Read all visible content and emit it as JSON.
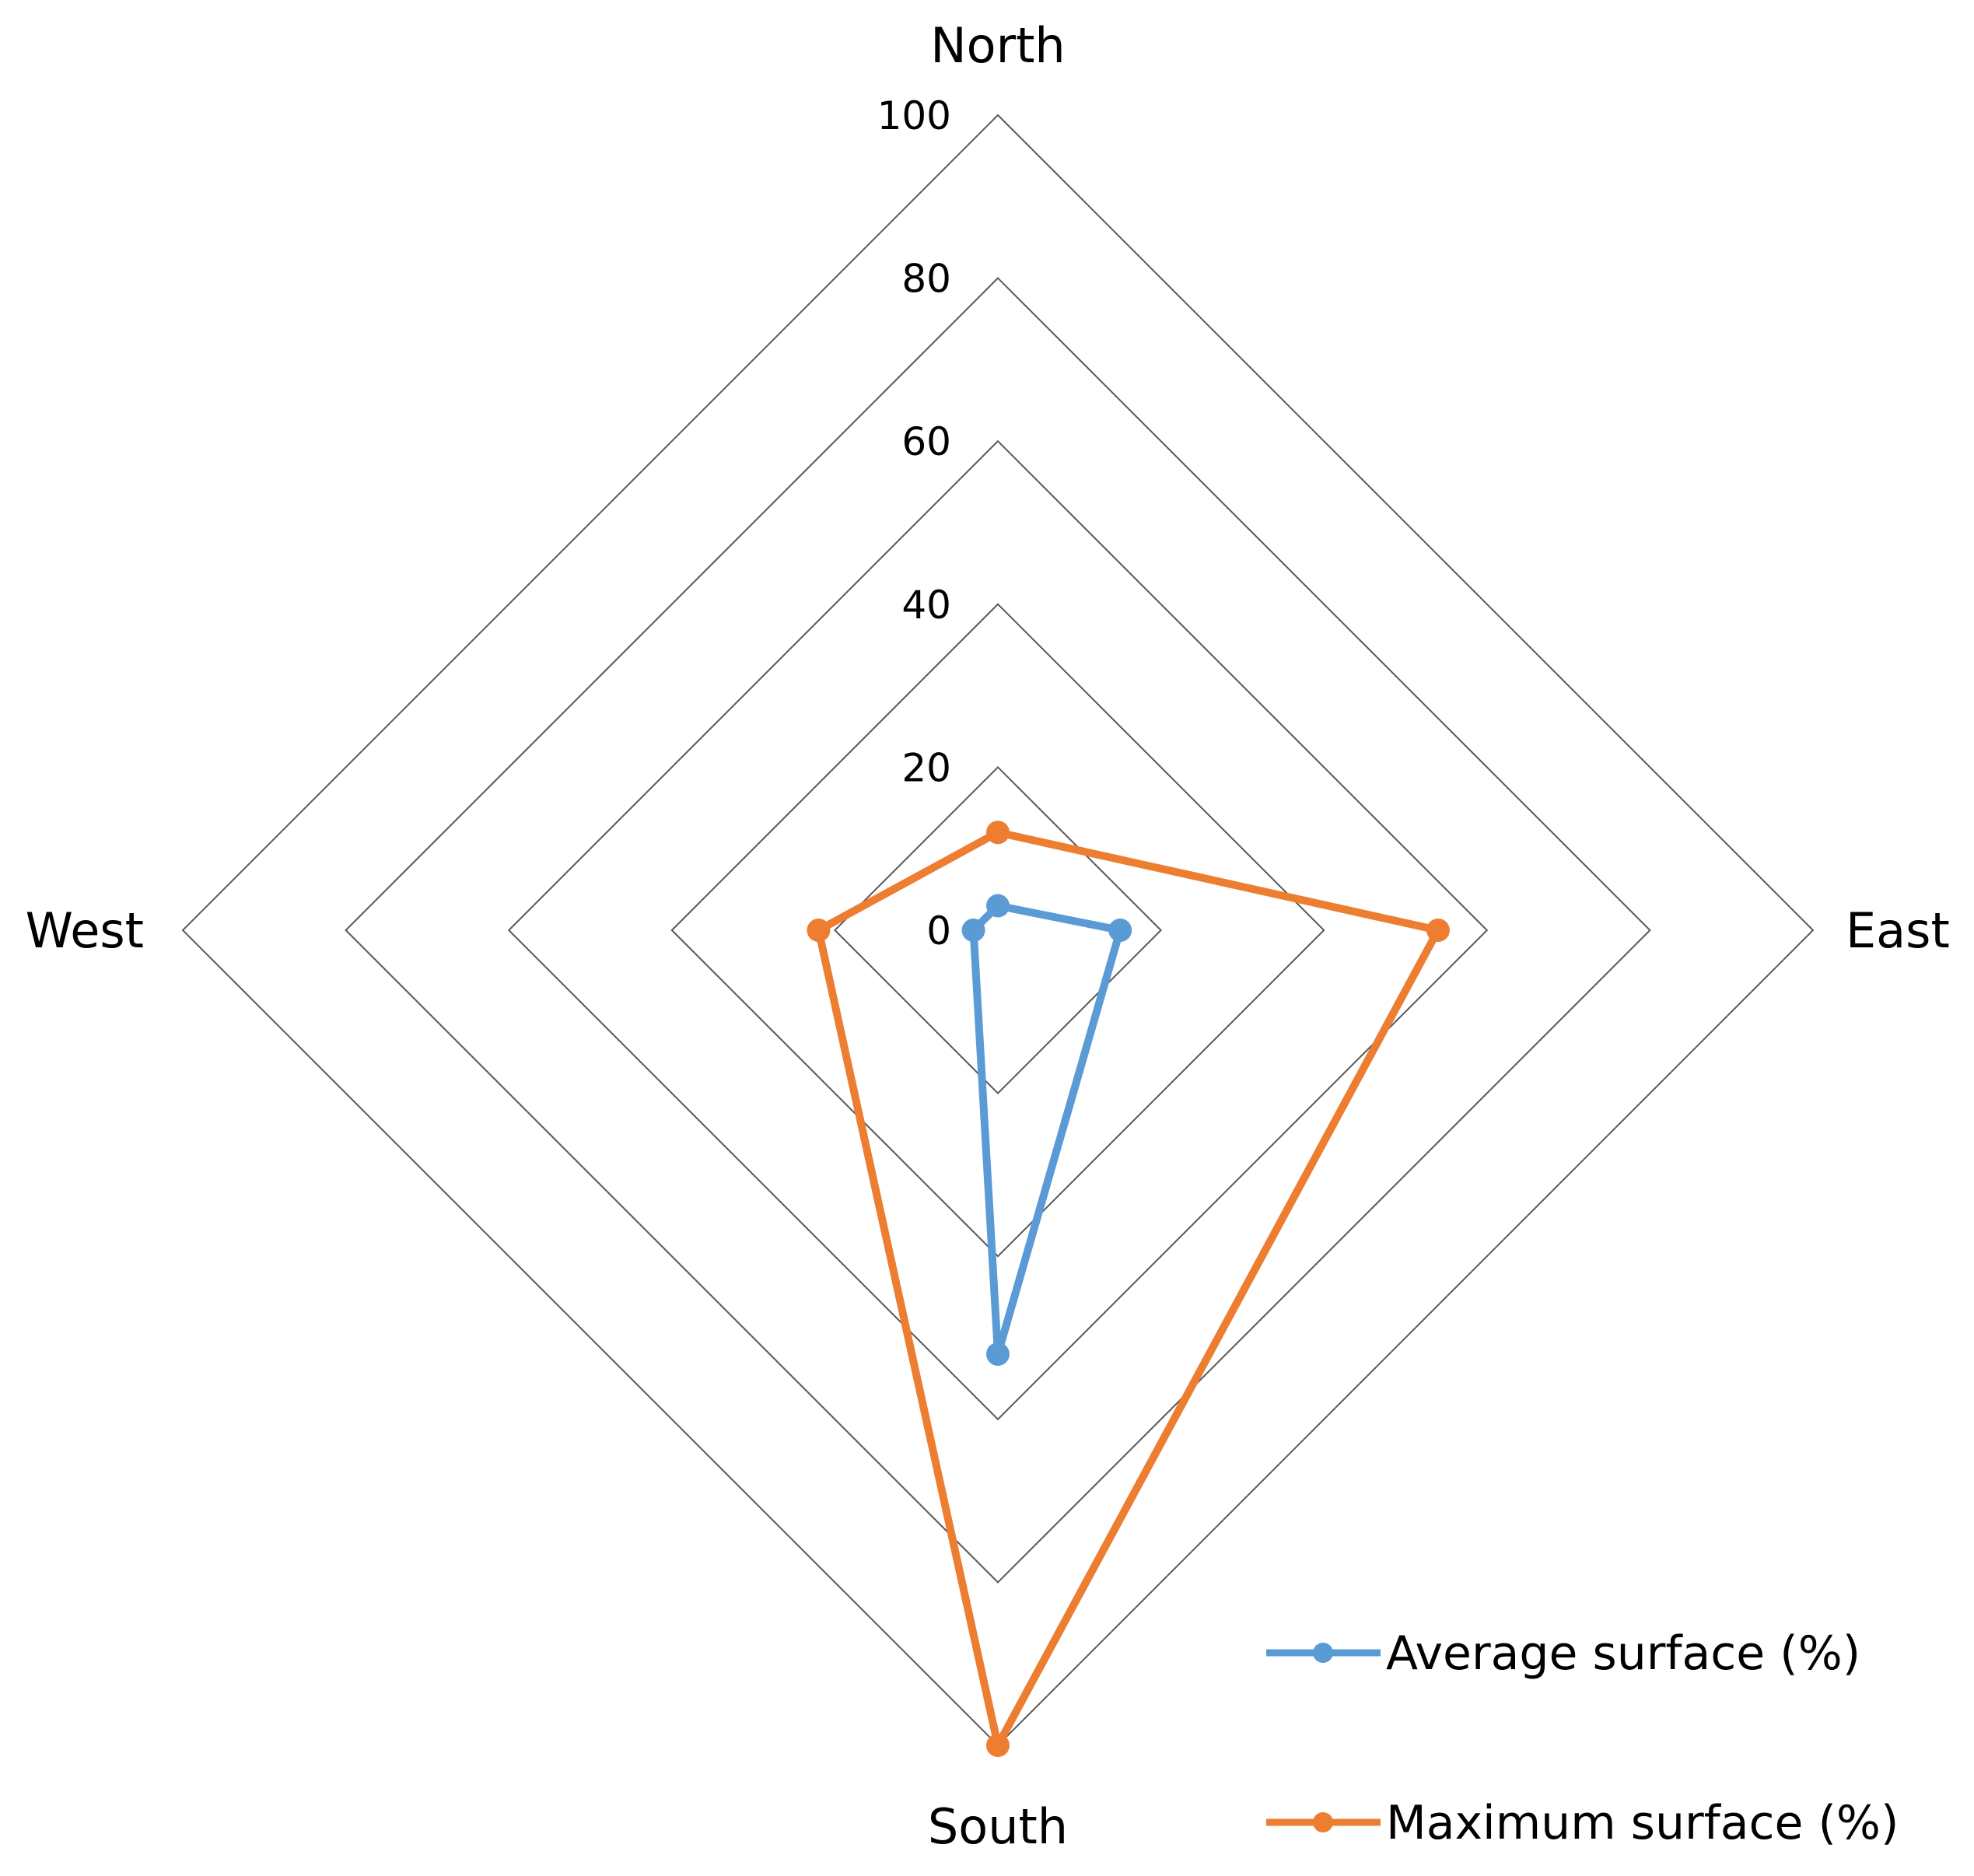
{
  "chart_data": {
    "type": "radar",
    "title": "",
    "categories": [
      "North",
      "East",
      "South",
      "West"
    ],
    "range": [
      0,
      100
    ],
    "ticks": [
      "0",
      "20",
      "40",
      "60",
      "80",
      "100"
    ],
    "series": [
      {
        "name": "Average surface (%)",
        "values": [
          3,
          15,
          52,
          3
        ],
        "color": "#5B9BD5"
      },
      {
        "name": "Maximum surface (%)",
        "values": [
          12,
          54,
          100,
          22
        ],
        "color": "#ED7D31"
      }
    ],
    "legend_position": "bottom-right",
    "gridline_color": "#595959"
  }
}
